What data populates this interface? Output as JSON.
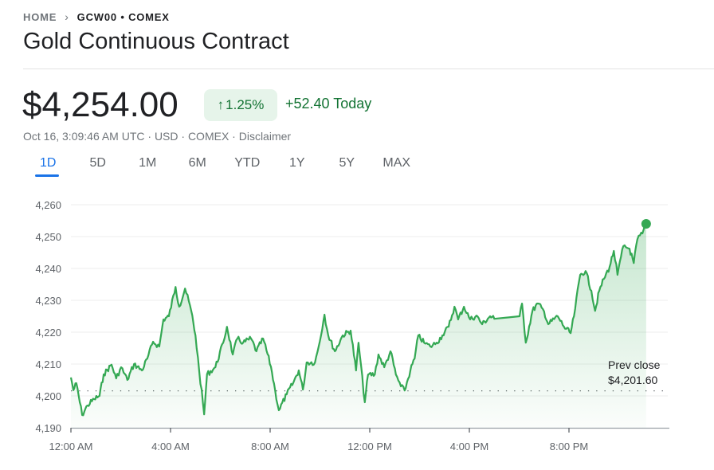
{
  "breadcrumb": {
    "home": "HOME",
    "separator_icon": "chevron-right-icon",
    "current": "GCW00 • COMEX"
  },
  "title": "Gold Continuous Contract",
  "quote": {
    "price": "$4,254.00",
    "change_percent": "1.25%",
    "change_icon": "arrow-up-icon",
    "change_today": "+52.40 Today",
    "meta": "Oct 16, 3:09:46 AM UTC · USD · COMEX · Disclaimer"
  },
  "range_tabs": [
    {
      "label": "1D",
      "active": true
    },
    {
      "label": "5D"
    },
    {
      "label": "1M"
    },
    {
      "label": "6M"
    },
    {
      "label": "YTD"
    },
    {
      "label": "1Y"
    },
    {
      "label": "5Y"
    },
    {
      "label": "MAX"
    }
  ],
  "colors": {
    "up": "#34a853",
    "up_text": "#137333",
    "badge_bg": "#e6f4ea",
    "accent": "#1a73e8"
  },
  "chart_data": {
    "type": "area",
    "ylim": [
      4190,
      4260
    ],
    "yticks": [
      "4,260",
      "4,250",
      "4,240",
      "4,230",
      "4,220",
      "4,210",
      "4,200",
      "4,190"
    ],
    "ytick_values": [
      4260,
      4250,
      4240,
      4230,
      4220,
      4210,
      4200,
      4190
    ],
    "xlim": [
      "00:00",
      "24:00"
    ],
    "xticks": [
      "12:00 AM",
      "4:00 AM",
      "8:00 AM",
      "12:00 PM",
      "4:00 PM",
      "8:00 PM"
    ],
    "xtick_values": [
      "00:00",
      "04:00",
      "08:00",
      "12:00",
      "16:00",
      "20:00"
    ],
    "grid": true,
    "prev_close": {
      "label": "Prev close",
      "value_label": "$4,201.60",
      "value": 4201.6
    },
    "series": [
      {
        "x": [
          "00:00",
          "00:06",
          "00:13",
          "00:27",
          "00:40",
          "00:56",
          "01:09",
          "01:19",
          "01:38",
          "01:49",
          "02:01",
          "02:16",
          "02:32",
          "02:51",
          "03:04",
          "03:18",
          "03:33",
          "03:43",
          "03:56",
          "04:12",
          "04:21",
          "04:35",
          "04:50",
          "05:00",
          "05:09",
          "05:21",
          "05:28",
          "05:48",
          "06:07",
          "06:16",
          "06:30",
          "06:41",
          "06:55",
          "07:14",
          "07:27",
          "07:43",
          "08:02",
          "08:12",
          "08:21",
          "08:40",
          "08:56",
          "09:09",
          "09:19",
          "09:28",
          "09:48",
          "09:57",
          "10:11",
          "10:20",
          "10:36",
          "10:55",
          "11:14",
          "11:27",
          "11:33",
          "11:48",
          "11:56",
          "12:12",
          "12:21",
          "12:35",
          "12:50",
          "13:03",
          "13:15",
          "13:24",
          "13:38",
          "13:48",
          "13:57",
          "14:11",
          "14:26",
          "14:41",
          "14:55",
          "15:10",
          "15:24",
          "15:33",
          "15:47",
          "16:02",
          "16:17",
          "16:31",
          "16:50",
          "17:00",
          "18:01",
          "18:07",
          "18:16",
          "18:32",
          "18:45",
          "19:00",
          "19:10",
          "19:33",
          "19:48",
          "20:04",
          "20:12",
          "20:27",
          "20:40",
          "20:54",
          "21:03",
          "21:13",
          "21:24",
          "21:38",
          "21:48",
          "21:57",
          "22:11",
          "22:26",
          "22:36",
          "22:45",
          "22:57",
          "23:06"
        ],
        "y": [
          4205.8,
          4201.8,
          4204,
          4194,
          4197,
          4199,
          4200,
          4206.8,
          4209.8,
          4205.5,
          4209,
          4205,
          4210,
          4208,
          4211.7,
          4217,
          4215.5,
          4224,
          4225,
          4234.2,
          4228,
          4233.7,
          4226.7,
          4219,
          4208,
          4194.2,
          4206.8,
          4209,
          4216.7,
          4221.7,
          4213,
          4218,
          4216.7,
          4218,
          4214,
          4218,
          4209.2,
          4201.7,
          4195.5,
          4200.5,
          4204.2,
          4208,
          4202,
          4210.5,
          4210.5,
          4215.5,
          4225.5,
          4219,
          4214,
          4219,
          4220.5,
          4208,
          4216.7,
          4198,
          4206.7,
          4206.7,
          4213,
          4209,
          4214,
          4206.7,
          4203,
          4201.7,
          4208,
          4211.7,
          4219,
          4216.7,
          4215.5,
          4216.7,
          4219,
          4221.7,
          4228,
          4224,
          4228,
          4224,
          4225.2,
          4222.5,
          4225,
          4224.2,
          4225,
          4229,
          4216.7,
          4226.7,
          4229,
          4226.5,
          4222.5,
          4225,
          4221.7,
          4219.7,
          4225,
          4238,
          4239.2,
          4233,
          4226.7,
          4233,
          4236.7,
          4240.5,
          4245.5,
          4238,
          4247,
          4246.2,
          4241.7,
          4249.2,
          4251,
          4254
        ]
      }
    ]
  }
}
